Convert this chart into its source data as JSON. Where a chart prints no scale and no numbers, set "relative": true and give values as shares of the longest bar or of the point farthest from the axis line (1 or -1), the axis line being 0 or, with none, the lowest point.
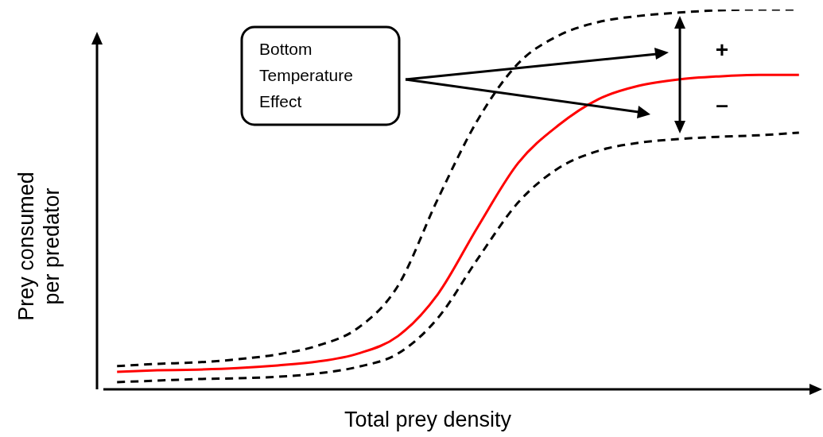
{
  "chart_data": {
    "type": "line",
    "relative": true,
    "xlabel": "Total prey density",
    "ylabel": "Prey consumed per predator",
    "annotations": [
      "Bottom Temperature Effect",
      "+",
      "–"
    ],
    "categories": [
      null,
      null,
      null,
      null,
      null,
      null,
      null,
      null,
      null,
      null,
      null,
      null,
      null,
      null,
      null,
      null,
      null,
      null
    ],
    "series": [
      {
        "color": "#000000",
        "line_style": "dashed",
        "values": [
          0.061,
          0.067,
          0.071,
          0.079,
          0.092,
          0.115,
          0.161,
          0.272,
          0.502,
          0.711,
          0.858,
          0.931,
          0.967,
          0.983,
          0.992,
          0.998,
          1,
          1
        ]
      },
      {
        "color": "#ff0000",
        "line_style": "solid",
        "values": [
          0.046,
          0.05,
          0.052,
          0.056,
          0.063,
          0.073,
          0.094,
          0.14,
          0.251,
          0.429,
          0.596,
          0.695,
          0.764,
          0.799,
          0.816,
          0.824,
          0.828,
          0.828
        ]
      },
      {
        "color": "#000000",
        "line_style": "dashed",
        "values": [
          0.019,
          0.023,
          0.027,
          0.029,
          0.033,
          0.042,
          0.059,
          0.094,
          0.188,
          0.345,
          0.492,
          0.582,
          0.628,
          0.649,
          0.659,
          0.665,
          0.669,
          0.676
        ]
      }
    ]
  }
}
